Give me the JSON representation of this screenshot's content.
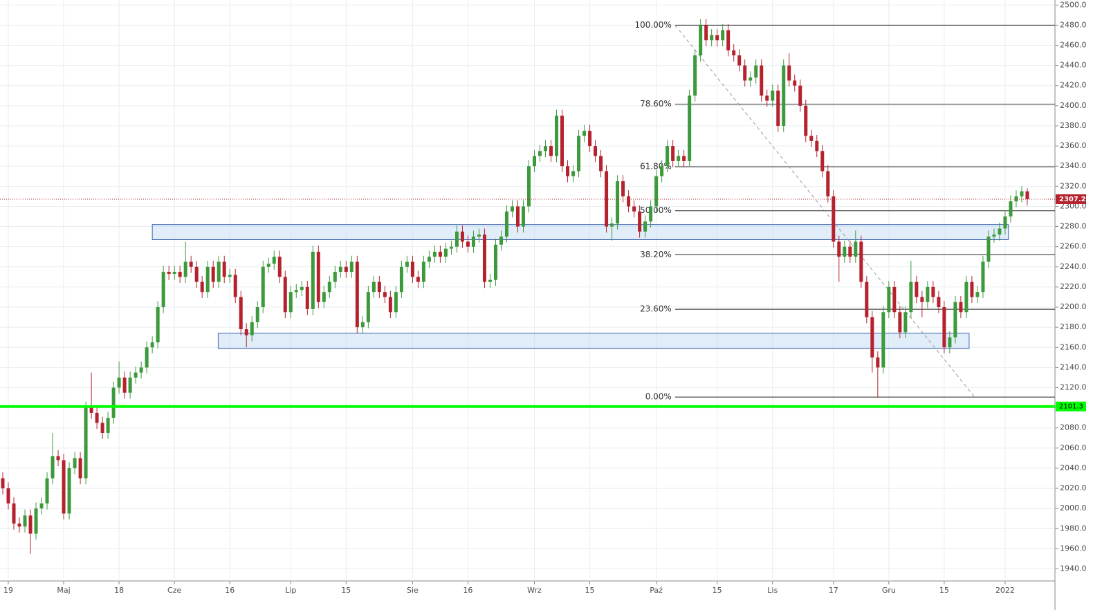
{
  "chart_data": {
    "type": "candlestick",
    "up_color": "#3c9a3c",
    "down_color": "#b5222e",
    "xlim": [
      -0.5,
      190
    ],
    "ylim": [
      1928,
      2505
    ],
    "grid": true,
    "open": [
      2030,
      2020,
      2005,
      1985,
      1982,
      1993,
      1975,
      2000,
      2005,
      2030,
      2052,
      2048,
      1995,
      2040,
      2050,
      2030,
      2100,
      2095,
      2085,
      2075,
      2090,
      2120,
      2130,
      2115,
      2130,
      2135,
      2140,
      2160,
      2165,
      2200,
      2235,
      2233,
      2235,
      2230,
      2245,
      2240,
      2225,
      2215,
      2240,
      2225,
      2245,
      2230,
      2232,
      2210,
      2178,
      2172,
      2185,
      2200,
      2240,
      2243,
      2250,
      2230,
      2195,
      2215,
      2217,
      2220,
      2198,
      2255,
      2205,
      2215,
      2225,
      2235,
      2240,
      2235,
      2245,
      2180,
      2185,
      2215,
      2225,
      2215,
      2210,
      2195,
      2215,
      2240,
      2245,
      2230,
      2225,
      2245,
      2250,
      2255,
      2250,
      2258,
      2260,
      2275,
      2265,
      2260,
      2270,
      2272,
      2225,
      2227,
      2262,
      2270,
      2295,
      2300,
      2280,
      2300,
      2340,
      2350,
      2355,
      2360,
      2350,
      2390,
      2340,
      2330,
      2335,
      2370,
      2375,
      2360,
      2350,
      2335,
      2280,
      2283,
      2325,
      2310,
      2300,
      2295,
      2275,
      2285,
      2300,
      2330,
      2340,
      2360,
      2345,
      2350,
      2345,
      2410,
      2450,
      2480,
      2465,
      2470,
      2465,
      2475,
      2455,
      2450,
      2440,
      2425,
      2428,
      2440,
      2410,
      2405,
      2415,
      2380,
      2440,
      2425,
      2420,
      2400,
      2370,
      2365,
      2355,
      2335,
      2310,
      2265,
      2250,
      2260,
      2250,
      2265,
      2225,
      2190,
      2150,
      2140,
      2195,
      2220,
      2195,
      2175,
      2195,
      2225,
      2210,
      2205,
      2220,
      2210,
      2200,
      2160,
      2170,
      2205,
      2195,
      2225,
      2210,
      2215,
      2245,
      2270,
      2272,
      2278,
      2290,
      2305,
      2310,
      2315
    ],
    "high": [
      2036,
      2026,
      2011,
      1991,
      1999,
      1999,
      2006,
      2011,
      2036,
      2075,
      2058,
      2054,
      2046,
      2056,
      2056,
      2106,
      2135,
      2101,
      2091,
      2096,
      2126,
      2146,
      2136,
      2136,
      2141,
      2146,
      2166,
      2171,
      2206,
      2241,
      2241,
      2241,
      2241,
      2265,
      2251,
      2246,
      2231,
      2246,
      2246,
      2251,
      2251,
      2238,
      2238,
      2216,
      2184,
      2191,
      2206,
      2246,
      2249,
      2256,
      2256,
      2236,
      2221,
      2223,
      2226,
      2226,
      2261,
      2261,
      2221,
      2231,
      2241,
      2246,
      2246,
      2251,
      2251,
      2191,
      2221,
      2231,
      2231,
      2221,
      2216,
      2221,
      2246,
      2251,
      2251,
      2236,
      2251,
      2256,
      2261,
      2261,
      2264,
      2266,
      2281,
      2281,
      2271,
      2276,
      2278,
      2278,
      2233,
      2268,
      2276,
      2301,
      2306,
      2306,
      2306,
      2346,
      2356,
      2361,
      2366,
      2366,
      2396,
      2396,
      2346,
      2341,
      2376,
      2381,
      2381,
      2366,
      2356,
      2341,
      2289,
      2331,
      2331,
      2316,
      2306,
      2301,
      2291,
      2306,
      2336,
      2346,
      2366,
      2366,
      2356,
      2356,
      2416,
      2456,
      2486,
      2486,
      2476,
      2476,
      2481,
      2481,
      2461,
      2456,
      2446,
      2434,
      2446,
      2446,
      2416,
      2421,
      2421,
      2446,
      2452,
      2431,
      2426,
      2406,
      2376,
      2371,
      2361,
      2341,
      2316,
      2271,
      2266,
      2266,
      2276,
      2271,
      2231,
      2196,
      2156,
      2201,
      2226,
      2226,
      2201,
      2201,
      2246,
      2231,
      2216,
      2226,
      2226,
      2216,
      2206,
      2176,
      2211,
      2211,
      2231,
      2231,
      2221,
      2251,
      2276,
      2278,
      2284,
      2296,
      2311,
      2316,
      2320,
      2318
    ],
    "low": [
      2014,
      1999,
      1979,
      1976,
      1976,
      1955,
      1969,
      1994,
      1999,
      2024,
      2042,
      1989,
      1989,
      2034,
      2024,
      2024,
      2089,
      2079,
      2069,
      2069,
      2084,
      2114,
      2109,
      2109,
      2124,
      2129,
      2134,
      2154,
      2159,
      2194,
      2227,
      2227,
      2224,
      2224,
      2234,
      2219,
      2209,
      2209,
      2219,
      2219,
      2224,
      2224,
      2204,
      2172,
      2160,
      2166,
      2179,
      2194,
      2234,
      2237,
      2224,
      2189,
      2189,
      2209,
      2211,
      2192,
      2192,
      2199,
      2199,
      2209,
      2219,
      2229,
      2229,
      2229,
      2174,
      2174,
      2179,
      2209,
      2209,
      2204,
      2189,
      2189,
      2209,
      2234,
      2224,
      2219,
      2219,
      2239,
      2244,
      2244,
      2244,
      2252,
      2254,
      2259,
      2254,
      2254,
      2264,
      2219,
      2219,
      2221,
      2256,
      2264,
      2289,
      2274,
      2274,
      2294,
      2334,
      2344,
      2349,
      2344,
      2344,
      2334,
      2324,
      2324,
      2329,
      2364,
      2354,
      2344,
      2329,
      2274,
      2266,
      2277,
      2304,
      2294,
      2289,
      2269,
      2269,
      2279,
      2294,
      2324,
      2334,
      2339,
      2339,
      2339,
      2339,
      2404,
      2444,
      2459,
      2459,
      2459,
      2459,
      2449,
      2444,
      2434,
      2419,
      2419,
      2422,
      2404,
      2399,
      2399,
      2374,
      2374,
      2419,
      2414,
      2394,
      2364,
      2359,
      2349,
      2329,
      2304,
      2259,
      2225,
      2244,
      2244,
      2244,
      2219,
      2184,
      2135,
      2110,
      2134,
      2189,
      2189,
      2169,
      2169,
      2189,
      2204,
      2190,
      2199,
      2204,
      2194,
      2154,
      2154,
      2164,
      2189,
      2189,
      2204,
      2204,
      2209,
      2239,
      2264,
      2266,
      2272,
      2284,
      2299,
      2304,
      2301
    ],
    "close": [
      2020,
      2005,
      1985,
      1982,
      1993,
      1975,
      2000,
      2005,
      2030,
      2052,
      2048,
      1995,
      2040,
      2050,
      2030,
      2100,
      2095,
      2085,
      2075,
      2090,
      2120,
      2130,
      2115,
      2130,
      2135,
      2140,
      2160,
      2165,
      2200,
      2235,
      2233,
      2235,
      2230,
      2245,
      2240,
      2225,
      2215,
      2240,
      2225,
      2245,
      2230,
      2232,
      2210,
      2178,
      2172,
      2185,
      2200,
      2240,
      2243,
      2250,
      2230,
      2195,
      2215,
      2217,
      2220,
      2198,
      2255,
      2205,
      2215,
      2225,
      2235,
      2240,
      2235,
      2245,
      2180,
      2185,
      2215,
      2225,
      2215,
      2210,
      2195,
      2215,
      2240,
      2245,
      2230,
      2225,
      2245,
      2250,
      2255,
      2250,
      2258,
      2260,
      2275,
      2265,
      2260,
      2270,
      2272,
      2225,
      2227,
      2262,
      2270,
      2295,
      2300,
      2280,
      2300,
      2340,
      2350,
      2355,
      2360,
      2350,
      2390,
      2340,
      2330,
      2335,
      2370,
      2375,
      2360,
      2350,
      2335,
      2280,
      2283,
      2325,
      2310,
      2300,
      2295,
      2275,
      2285,
      2300,
      2330,
      2340,
      2360,
      2345,
      2350,
      2345,
      2410,
      2450,
      2480,
      2465,
      2470,
      2465,
      2475,
      2455,
      2450,
      2440,
      2425,
      2428,
      2440,
      2410,
      2405,
      2415,
      2380,
      2440,
      2425,
      2420,
      2400,
      2370,
      2365,
      2355,
      2335,
      2310,
      2265,
      2250,
      2260,
      2250,
      2265,
      2225,
      2190,
      2150,
      2140,
      2195,
      2220,
      2195,
      2175,
      2195,
      2225,
      2210,
      2205,
      2220,
      2210,
      2200,
      2160,
      2170,
      2205,
      2195,
      2225,
      2210,
      2215,
      2245,
      2270,
      2272,
      2278,
      2290,
      2305,
      2310,
      2315,
      2307.2
    ],
    "xticks": [
      {
        "value": 1,
        "label": "19"
      },
      {
        "value": 11,
        "label": "Maj"
      },
      {
        "value": 21,
        "label": "18"
      },
      {
        "value": 31,
        "label": "Cze"
      },
      {
        "value": 41,
        "label": "16"
      },
      {
        "value": 52,
        "label": "Lip"
      },
      {
        "value": 62,
        "label": "15"
      },
      {
        "value": 74,
        "label": "Sie"
      },
      {
        "value": 84,
        "label": "16"
      },
      {
        "value": 96,
        "label": "Wrz"
      },
      {
        "value": 106,
        "label": "15"
      },
      {
        "value": 118,
        "label": "Paź"
      },
      {
        "value": 129,
        "label": "15"
      },
      {
        "value": 139,
        "label": "Lis"
      },
      {
        "value": 150,
        "label": "17"
      },
      {
        "value": 160,
        "label": "Gru"
      },
      {
        "value": 170,
        "label": "15"
      },
      {
        "value": 181,
        "label": "2022"
      }
    ],
    "yticks": [
      {
        "value": 1940,
        "label": "1940.0"
      },
      {
        "value": 1960,
        "label": "1960.0"
      },
      {
        "value": 1980,
        "label": "1980.0"
      },
      {
        "value": 2000,
        "label": "2000.0"
      },
      {
        "value": 2020,
        "label": "2020.0"
      },
      {
        "value": 2040,
        "label": "2040.0"
      },
      {
        "value": 2060,
        "label": "2060.0"
      },
      {
        "value": 2080,
        "label": "2080.0"
      },
      {
        "value": 2100,
        "label": "2100.0"
      },
      {
        "value": 2120,
        "label": "2120.0"
      },
      {
        "value": 2140,
        "label": "2140.0"
      },
      {
        "value": 2160,
        "label": "2160.0"
      },
      {
        "value": 2180,
        "label": "2180.0"
      },
      {
        "value": 2200,
        "label": "2200.0"
      },
      {
        "value": 2220,
        "label": "2220.0"
      },
      {
        "value": 2240,
        "label": "2240.0"
      },
      {
        "value": 2260,
        "label": "2260.0"
      },
      {
        "value": 2280,
        "label": "2280.0"
      },
      {
        "value": 2300,
        "label": "2300.0"
      },
      {
        "value": 2320,
        "label": "2320.0"
      },
      {
        "value": 2340,
        "label": "2340.0"
      },
      {
        "value": 2360,
        "label": "2360.0"
      },
      {
        "value": 2380,
        "label": "2380.0"
      },
      {
        "value": 2400,
        "label": "2400.0"
      },
      {
        "value": 2420,
        "label": "2420.0"
      },
      {
        "value": 2440,
        "label": "2440.0"
      },
      {
        "value": 2460,
        "label": "2460.0"
      },
      {
        "value": 2480,
        "label": "2480.0"
      },
      {
        "value": 2500,
        "label": "2500.0"
      }
    ],
    "fib_levels": [
      {
        "label": "100.00%",
        "value": 2480
      },
      {
        "label": "78.60%",
        "value": 2401.5
      },
      {
        "label": "61.80%",
        "value": 2339.4
      },
      {
        "label": "50.00%",
        "value": 2295.7
      },
      {
        "label": "38.20%",
        "value": 2252
      },
      {
        "label": "23.60%",
        "value": 2197.9
      },
      {
        "label": "0.00%",
        "value": 2110.6
      }
    ],
    "fib_start": 121.4,
    "zones": [
      {
        "x": [
          27,
          181.6
        ],
        "y": [
          2267,
          2282
        ]
      },
      {
        "x": [
          38.9,
          174.5
        ],
        "y": [
          2159,
          2174
        ]
      }
    ],
    "trendline": {
      "x": [
        121.4,
        175.5
      ],
      "y": [
        2480,
        2110.6
      ]
    },
    "support": {
      "value": 2101.3,
      "label": "2101.3",
      "color": "#00ff00"
    },
    "last_price_color": "#b5222e"
  }
}
